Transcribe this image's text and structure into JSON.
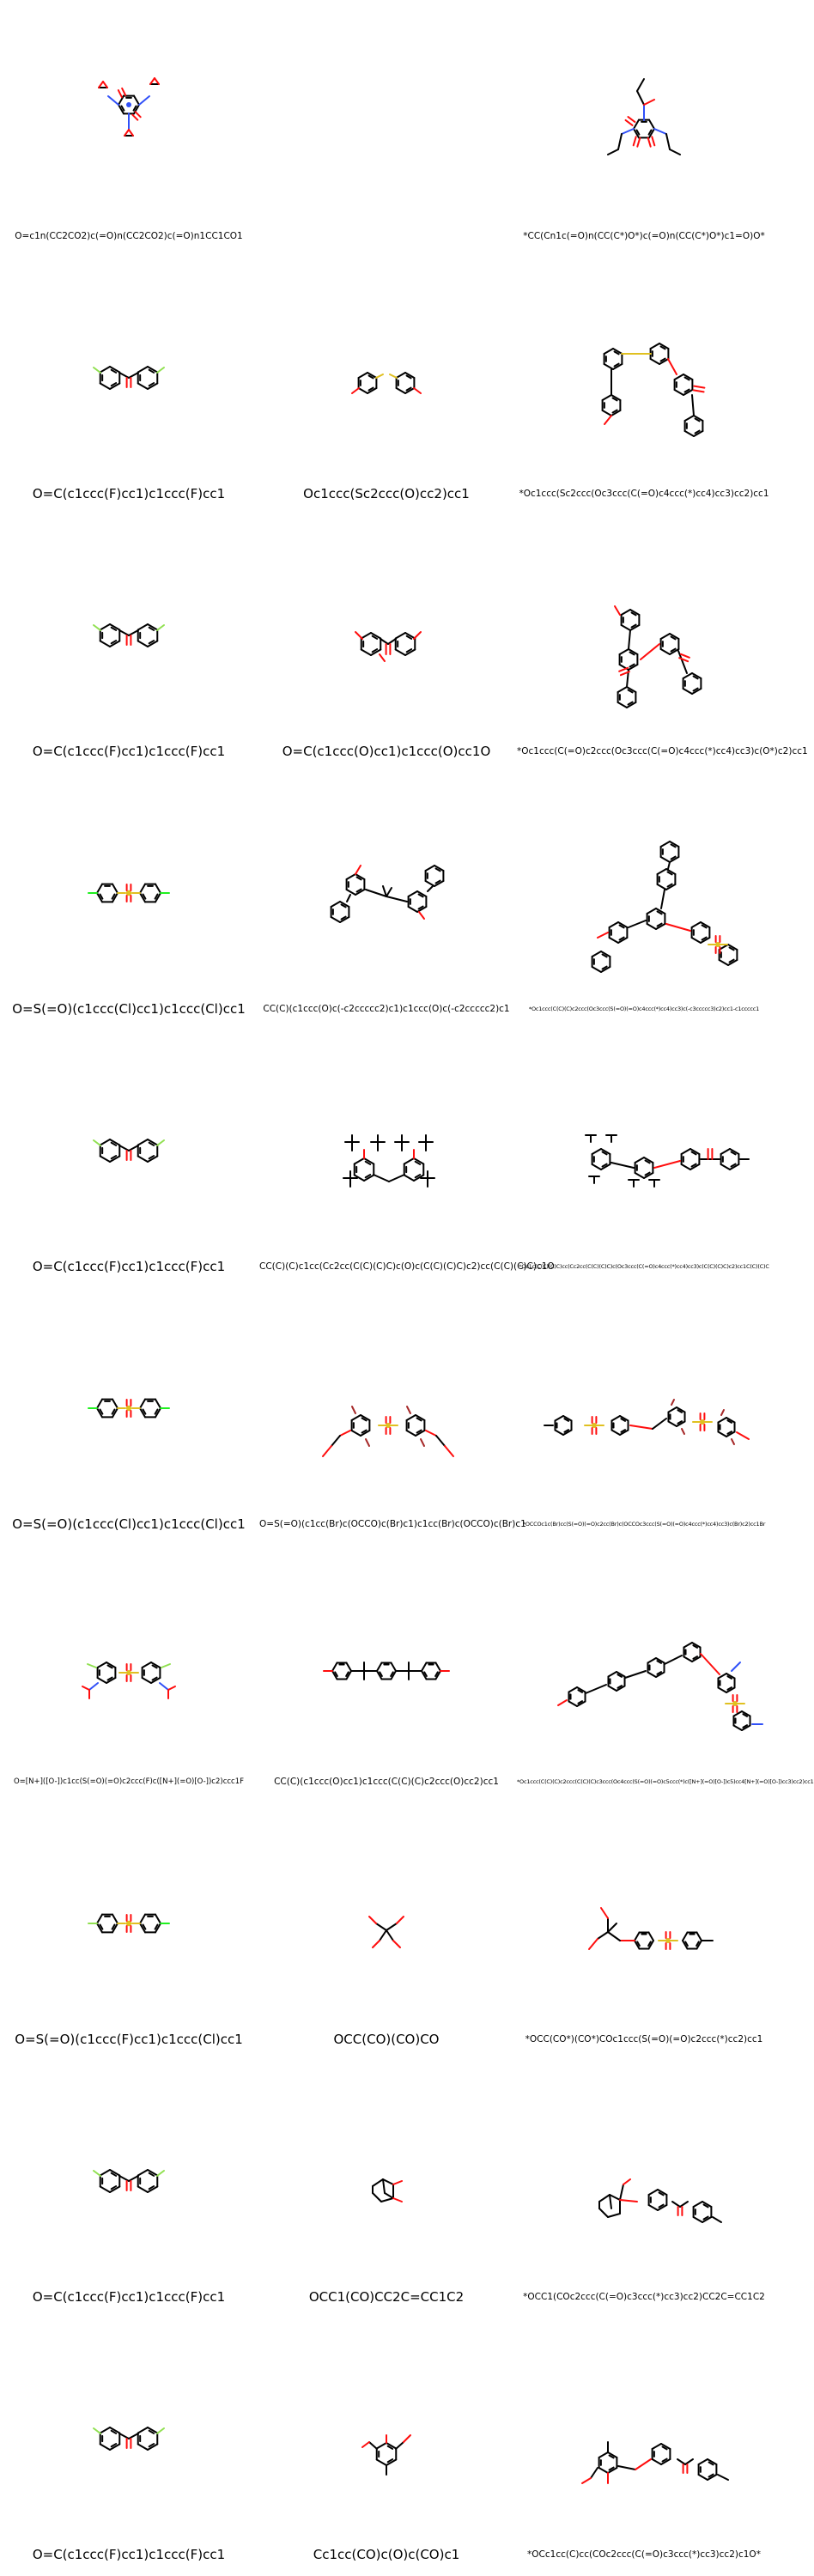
{
  "colors": {
    "bond": "#000000",
    "oxygen": "#ff0d0d",
    "nitrogen": "#3050f8",
    "fluorine": "#90e050",
    "chlorine": "#1ff01f",
    "sulfur": "#e0c020",
    "bromine": "#a62929"
  },
  "grid": {
    "columns": 3,
    "rows": [
      [
        {
          "smiles": "O=c1n(CC2CO2)c(=O)n(CC2CO2)c(=O)n1CC1CO1",
          "size": "sm",
          "molecule": "triglycidyl-isocyanurate"
        },
        null,
        {
          "smiles": "*CC(Cn1c(=O)n(CC(C*)O*)c(=O)n(CC(C*)O*)c1=O)O*",
          "size": "sm",
          "molecule": "isocyanurate-network"
        }
      ],
      [
        {
          "smiles": "O=C(c1ccc(F)cc1)c1ccc(F)cc1",
          "size": "lg",
          "molecule": "difluorobenzophenone"
        },
        {
          "smiles": "Oc1ccc(Sc2ccc(O)cc2)cc1",
          "size": "lg",
          "molecule": "thiodiphenol"
        },
        {
          "smiles": "*Oc1ccc(Sc2ccc(Oc3ccc(C(=O)c4ccc(*)cc4)cc3)cc2)cc1",
          "size": "sm",
          "molecule": "poly-thioether-ketone"
        }
      ],
      [
        {
          "smiles": "O=C(c1ccc(F)cc1)c1ccc(F)cc1",
          "size": "lg",
          "molecule": "difluorobenzophenone"
        },
        {
          "smiles": "O=C(c1ccc(O)cc1)c1ccc(O)cc1O",
          "size": "lg",
          "molecule": "trihydroxybenzophenone"
        },
        {
          "smiles": "*Oc1ccc(C(=O)c2ccc(Oc3ccc(C(=O)c4ccc(*)cc4)cc3)c(O*)c2)cc1",
          "size": "sm",
          "molecule": "branched-peek"
        }
      ],
      [
        {
          "smiles": "O=S(=O)(c1ccc(Cl)cc1)c1ccc(Cl)cc1",
          "size": "lg",
          "molecule": "dichlorodiphenylsulfone"
        },
        {
          "smiles": "CC(C)(c1ccc(O)c(-c2ccccc2)c1)c1ccc(O)c(-c2ccccc2)c1",
          "size": "sm",
          "molecule": "diphenyl-bisphenol-a"
        },
        {
          "smiles": "*Oc1ccc(C(C)(C)c2ccc(Oc3ccc(S(=O)(=O)c4ccc(*)cc4)cc3)c(-c3ccccc3)c2)cc1-c1ccccc1",
          "size": "xxs",
          "molecule": "phenylated-polysulfone"
        }
      ],
      [
        {
          "smiles": "O=C(c1ccc(F)cc1)c1ccc(F)cc1",
          "size": "lg",
          "molecule": "difluorobenzophenone"
        },
        {
          "smiles": "CC(C)(C)c1cc(Cc2cc(C(C)(C)C)c(O)c(C(C)(C)C)c2)cc(C(C)(C)C)c1O",
          "size": "sm",
          "molecule": "tetra-tert-butyl-methylene-bisphenol"
        },
        {
          "smiles": "*Oc1c(C(C)(C)C)cc(Cc2cc(C(C)(C)C)c(Oc3ccc(C(=O)c4ccc(*)cc4)cc3)c(C(C)(C)C)c2)cc1C(C)(C)C",
          "size": "xxs",
          "molecule": "hindered-peek"
        }
      ],
      [
        {
          "smiles": "O=S(=O)(c1ccc(Cl)cc1)c1ccc(Cl)cc1",
          "size": "lg",
          "molecule": "dichlorodiphenylsulfone"
        },
        {
          "smiles": "O=S(=O)(c1cc(Br)c(OCCO)c(Br)c1)c1cc(Br)c(OCCO)c(Br)c1",
          "size": "sm",
          "molecule": "tetrabromo-sulfone-diol"
        },
        {
          "smiles": "*OCCOc1c(Br)cc(S(=O)(=O)c2cc(Br)c(OCCOc3ccc(S(=O)(=O)c4ccc(*)cc4)cc3)c(Br)c2)cc1Br",
          "size": "xxs",
          "molecule": "brominated-polysulfone"
        }
      ],
      [
        {
          "smiles": "O=[N+]([O-])c1cc(S(=O)(=O)c2ccc(F)c([N+](=O)[O-])c2)ccc1F",
          "size": "xs",
          "molecule": "dinitro-difluorodiphenylsulfone"
        },
        {
          "smiles": "CC(C)(c1ccc(O)cc1)c1ccc(C(C)(C)c2ccc(O)cc2)cc1",
          "size": "sm",
          "molecule": "bisphenol-p"
        },
        {
          "smiles": "*Oc1ccc(C(C)(C)c2ccc(C(C)(C)c3ccc(Oc4ccc(S(=O)(=O)c5ccc(*)c([N+](=O)[O-])c5)cc4[N+](=O)[O-])cc3)cc2)cc1",
          "size": "xxs",
          "molecule": "nitrated-polysulfone"
        }
      ],
      [
        {
          "smiles": "O=S(=O)(c1ccc(F)cc1)c1ccc(Cl)cc1",
          "size": "lg",
          "molecule": "chlorofluorodiphenylsulfone"
        },
        {
          "smiles": "OCC(CO)(CO)CO",
          "size": "lg",
          "molecule": "pentaerythritol"
        },
        {
          "smiles": "*OCC(CO*)(CO*)COc1ccc(S(=O)(=O)c2ccc(*)cc2)cc1",
          "size": "sm",
          "molecule": "pentaerythritol-sulfone-network"
        }
      ],
      [
        {
          "smiles": "O=C(c1ccc(F)cc1)c1ccc(F)cc1",
          "size": "lg",
          "molecule": "difluorobenzophenone"
        },
        {
          "smiles": "OCC1(CO)CC2C=CC1C2",
          "size": "lg",
          "molecule": "norbornene-dimethanol"
        },
        {
          "smiles": "*OCC1(COc2ccc(C(=O)c3ccc(*)cc3)cc2)CC2C=CC1C2",
          "size": "sm",
          "molecule": "norbornene-polyketone"
        }
      ],
      [
        {
          "smiles": "O=C(c1ccc(F)cc1)c1ccc(F)cc1",
          "size": "lg",
          "molecule": "difluorobenzophenone"
        },
        {
          "smiles": "Cc1cc(CO)c(O)c(CO)c1",
          "size": "lg",
          "molecule": "bis-hydroxymethyl-cresol"
        },
        {
          "smiles": "*OCc1cc(C)cc(COc2ccc(C(=O)c3ccc(*)cc3)cc2)c1O*",
          "size": "sm",
          "molecule": "cresol-polyketone"
        }
      ]
    ]
  }
}
